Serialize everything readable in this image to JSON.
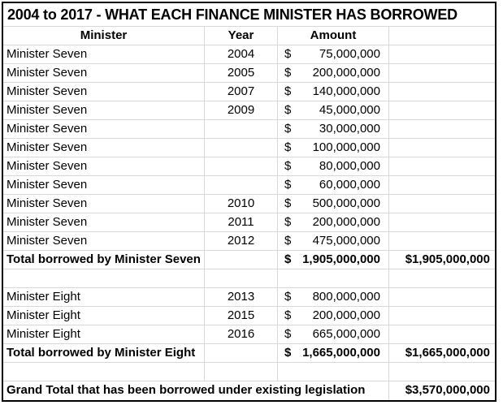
{
  "chart_data": {
    "type": "table",
    "title": "2004 to 2017 - WHAT EACH FINANCE MINISTER HAS BORROWED",
    "columns": [
      "Minister",
      "Year",
      "Amount",
      ""
    ],
    "rows": [
      {
        "type": "data",
        "minister": "Minister Seven",
        "year": "2004",
        "dollar": "$",
        "amount": "75,000,000",
        "total": ""
      },
      {
        "type": "data",
        "minister": "Minister Seven",
        "year": "2005",
        "dollar": "$",
        "amount": "200,000,000",
        "total": ""
      },
      {
        "type": "data",
        "minister": "Minister Seven",
        "year": "2007",
        "dollar": "$",
        "amount": "140,000,000",
        "total": ""
      },
      {
        "type": "data",
        "minister": "Minister Seven",
        "year": "2009",
        "dollar": "$",
        "amount": "45,000,000",
        "total": ""
      },
      {
        "type": "data",
        "minister": "Minister Seven",
        "year": "",
        "dollar": "$",
        "amount": "30,000,000",
        "total": ""
      },
      {
        "type": "data",
        "minister": "Minister Seven",
        "year": "",
        "dollar": "$",
        "amount": "100,000,000",
        "total": ""
      },
      {
        "type": "data",
        "minister": "Minister Seven",
        "year": "",
        "dollar": "$",
        "amount": "80,000,000",
        "total": ""
      },
      {
        "type": "data",
        "minister": "Minister Seven",
        "year": "",
        "dollar": "$",
        "amount": "60,000,000",
        "total": ""
      },
      {
        "type": "data",
        "minister": "Minister Seven",
        "year": "2010",
        "dollar": "$",
        "amount": "500,000,000",
        "total": ""
      },
      {
        "type": "data",
        "minister": "Minister Seven",
        "year": "2011",
        "dollar": "$",
        "amount": "200,000,000",
        "total": ""
      },
      {
        "type": "data",
        "minister": "Minister Seven",
        "year": "2012",
        "dollar": "$",
        "amount": "475,000,000",
        "total": ""
      },
      {
        "type": "total",
        "label": "Total borrowed by Minister Seven",
        "year": "",
        "dollar": "$",
        "amount": "1,905,000,000",
        "total": "$1,905,000,000"
      },
      {
        "type": "blank",
        "minister": "",
        "year": "",
        "dollar": "",
        "amount": "",
        "total": ""
      },
      {
        "type": "data",
        "minister": "Minister Eight",
        "year": "2013",
        "dollar": "$",
        "amount": "800,000,000",
        "total": ""
      },
      {
        "type": "data",
        "minister": "Minister Eight",
        "year": "2015",
        "dollar": "$",
        "amount": "200,000,000",
        "total": ""
      },
      {
        "type": "data",
        "minister": "Minister Eight",
        "year": "2016",
        "dollar": "$",
        "amount": "665,000,000",
        "total": ""
      },
      {
        "type": "total",
        "label": "Total borrowed by Minister Eight",
        "year": "",
        "dollar": "$",
        "amount": "1,665,000,000",
        "total": "$1,665,000,000"
      },
      {
        "type": "blank",
        "minister": "",
        "year": "",
        "dollar": "",
        "amount": "",
        "total": ""
      },
      {
        "type": "grand",
        "label": "Grand Total that has been borrowed under existing legislation",
        "total": "$3,570,000,000"
      }
    ],
    "totals": {
      "minister_seven": "$1,905,000,000",
      "minister_eight": "$1,665,000,000",
      "grand_total": "$3,570,000,000"
    }
  },
  "colors": {
    "grid_line": "#d8d8d8",
    "outer_border": "#000000",
    "background": "#ffffff",
    "text": "#000000"
  }
}
